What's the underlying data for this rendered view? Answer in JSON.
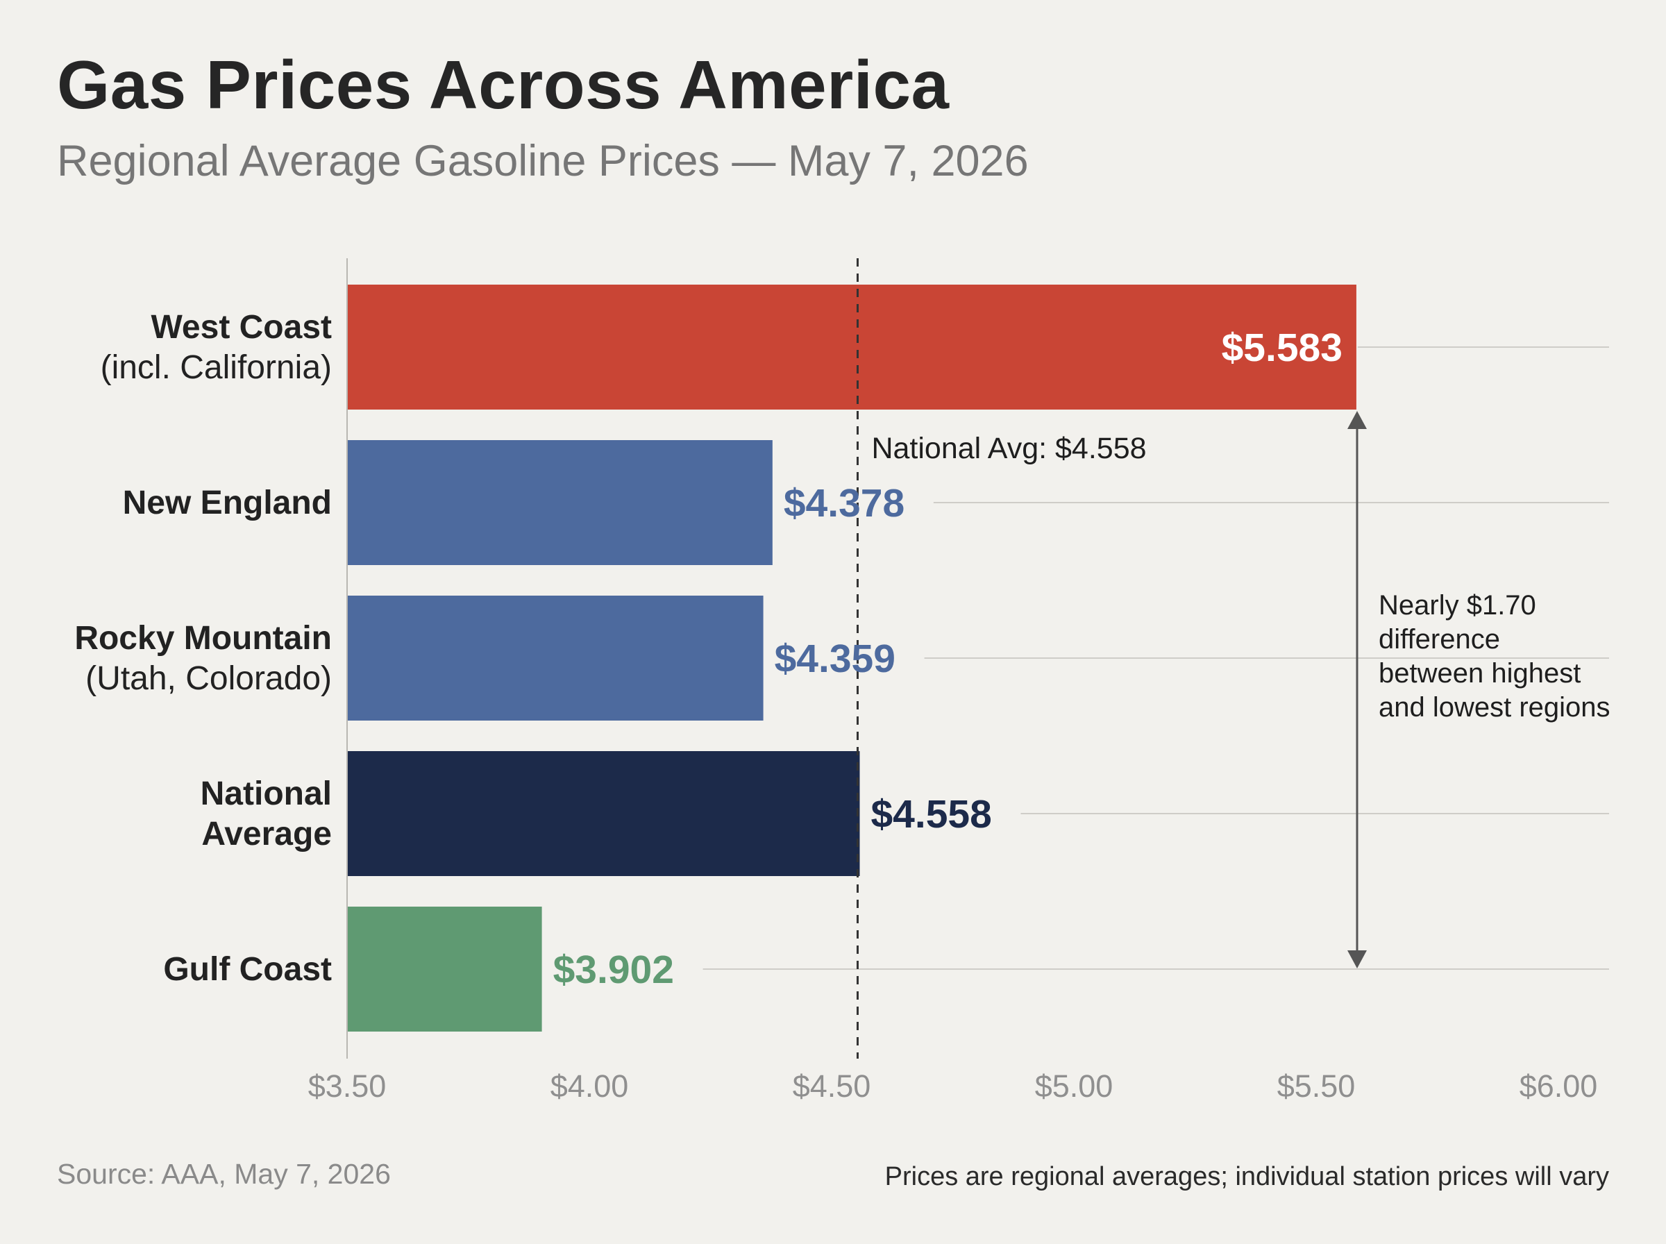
{
  "title": "Gas Prices Across America",
  "subtitle": "Regional Average Gasoline Prices — May 7, 2026",
  "footer": {
    "source": "Source: AAA, May 7, 2026",
    "note": "Prices are regional averages; individual station prices will vary"
  },
  "chart_data": {
    "type": "bar",
    "orientation": "horizontal",
    "categories": [
      [
        "West Coast",
        "(incl. California)"
      ],
      [
        "New England"
      ],
      [
        "Rocky Mountain",
        "(Utah, Colorado)"
      ],
      [
        "National",
        "Average"
      ],
      [
        "Gulf Coast"
      ]
    ],
    "values": [
      5.583,
      4.378,
      4.359,
      4.558,
      3.902
    ],
    "value_labels": [
      "$5.583",
      "$4.378",
      "$4.359",
      "$4.558",
      "$3.902"
    ],
    "colors": [
      "#c94535",
      "#4d6a9e",
      "#4d6a9e",
      "#1c2a4a",
      "#5f9a72"
    ],
    "label_colors": [
      "#ffffff",
      "#4d6a9e",
      "#4d6a9e",
      "#1c2a4a",
      "#5f9a72"
    ],
    "xlim": [
      3.5,
      6.0
    ],
    "x_ticks": [
      3.5,
      4.0,
      4.5,
      5.0,
      5.5,
      6.0
    ],
    "x_tick_labels": [
      "$3.50",
      "$4.00",
      "$4.50",
      "$5.00",
      "$5.50",
      "$6.00"
    ],
    "reference_line": {
      "value": 4.558,
      "label": "National Avg: $4.558",
      "style": "dashed"
    },
    "range_annotation": {
      "from": 3.902,
      "to": 5.583,
      "label_lines": [
        "Nearly $1.70",
        "difference",
        "between highest",
        "and lowest regions"
      ]
    },
    "xlabel": "",
    "ylabel": ""
  }
}
